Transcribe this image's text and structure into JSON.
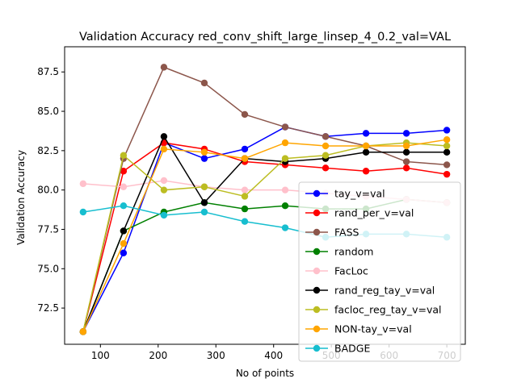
{
  "chart_data": {
    "type": "line",
    "title": "Validation Accuracy red_conv_shift_large_linsep_4_0.2_val=VAL",
    "xlabel": "No of points",
    "ylabel": "Validation Accuracy",
    "xlim": [
      38,
      732
    ],
    "ylim": [
      70.2,
      89.1
    ],
    "xticks": [
      100,
      200,
      300,
      400,
      500,
      600,
      700
    ],
    "yticks": [
      72.5,
      75.0,
      77.5,
      80.0,
      82.5,
      85.0,
      87.5
    ],
    "xtick_labels": [
      "100",
      "200",
      "300",
      "400",
      "500",
      "600",
      "700"
    ],
    "ytick_labels": [
      "72.5",
      "75.0",
      "77.5",
      "80.0",
      "82.5",
      "85.0",
      "87.5"
    ],
    "legend_position": "lower-right",
    "x": [
      70,
      140,
      210,
      280,
      350,
      420,
      490,
      560,
      630,
      700
    ],
    "series": [
      {
        "name": "tay_v=val",
        "color": "#0000ff",
        "values": [
          71.0,
          76.0,
          83.0,
          82.0,
          82.6,
          84.0,
          83.4,
          83.6,
          83.6,
          83.8
        ]
      },
      {
        "name": "rand_per_v=val",
        "color": "#ff0000",
        "values": [
          71.0,
          81.2,
          83.0,
          82.6,
          81.8,
          81.6,
          81.4,
          81.2,
          81.4,
          81.0
        ]
      },
      {
        "name": "FASS",
        "color": "#8c564b",
        "values": [
          71.0,
          82.0,
          87.8,
          86.8,
          84.8,
          84.0,
          83.4,
          82.8,
          81.8,
          81.6
        ]
      },
      {
        "name": "random",
        "color": "#008000",
        "values": [
          71.0,
          77.4,
          78.6,
          79.2,
          78.8,
          79.0,
          78.8,
          78.8,
          79.4,
          79.2
        ]
      },
      {
        "name": "FacLoc",
        "color": "#ffc0cb",
        "values": [
          80.4,
          80.2,
          80.6,
          80.2,
          80.0,
          80.0,
          79.8,
          79.6,
          79.4,
          79.2
        ]
      },
      {
        "name": "rand_reg_tay_v=val",
        "color": "#000000",
        "values": [
          71.0,
          77.4,
          83.4,
          79.2,
          82.0,
          81.8,
          82.0,
          82.4,
          82.4,
          82.4
        ]
      },
      {
        "name": "facloc_reg_tay_v=val",
        "color": "#bcbd22",
        "values": [
          71.0,
          82.2,
          80.0,
          80.2,
          79.6,
          82.0,
          82.2,
          82.8,
          83.0,
          82.8
        ]
      },
      {
        "name": "NON-tay_v=val",
        "color": "#ffa500",
        "values": [
          71.0,
          76.6,
          82.6,
          82.4,
          82.0,
          83.0,
          82.8,
          82.8,
          82.8,
          83.2
        ]
      },
      {
        "name": "BADGE",
        "color": "#17becf",
        "values": [
          78.6,
          79.0,
          78.4,
          78.6,
          78.0,
          77.6,
          77.0,
          77.2,
          77.2,
          77.0
        ]
      }
    ]
  }
}
